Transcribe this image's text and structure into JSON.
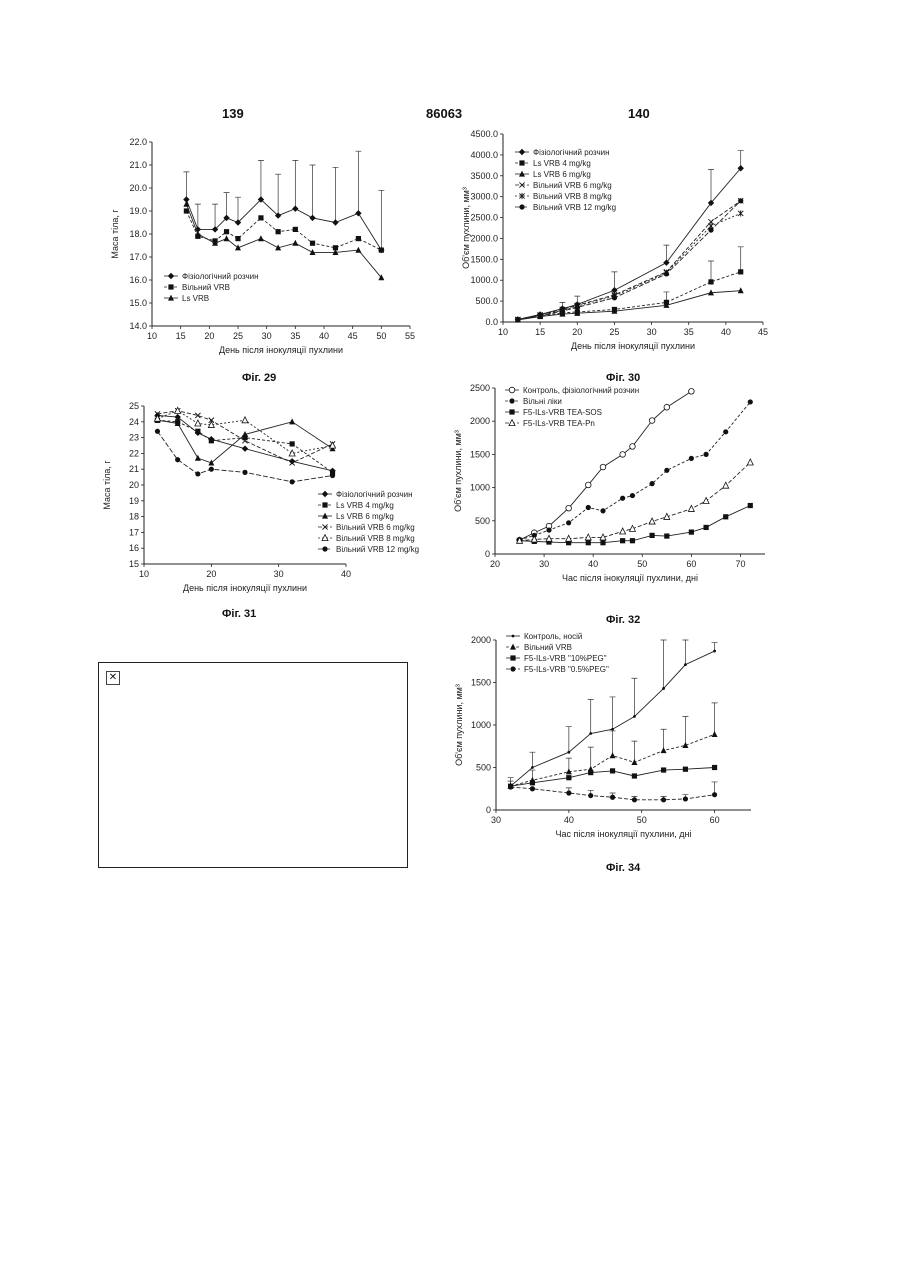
{
  "header": {
    "left": "139",
    "center": "86063",
    "right": "140"
  },
  "captions": [
    "Фіг. 29",
    "Фіг. 30",
    "Фіг. 31",
    "Фіг. 32",
    "Фіг. 34"
  ],
  "broken_image": {
    "icon": "broken-image-icon",
    "glyph": "✕"
  },
  "chart_data": [
    {
      "id": "fig29",
      "type": "line",
      "xlabel": "День після інокуляції пухлини",
      "ylabel": "Маса тіла, г",
      "xlim": [
        10,
        55
      ],
      "ylim": [
        14.0,
        22.0
      ],
      "xticks": [
        10,
        15,
        20,
        25,
        30,
        35,
        40,
        45,
        50,
        55
      ],
      "yticks": [
        14.0,
        15.0,
        16.0,
        17.0,
        18.0,
        19.0,
        20.0,
        21.0,
        22.0
      ],
      "ytick_decimals": 1,
      "legend_position": "bottom-left",
      "series": [
        {
          "name": "Фізіологічний розчин",
          "marker": "diamond",
          "x": [
            16,
            18,
            21,
            23,
            25,
            29,
            32,
            35,
            38,
            42,
            46,
            50
          ],
          "y": [
            19.5,
            18.2,
            18.2,
            18.7,
            18.5,
            19.5,
            18.8,
            19.1,
            18.7,
            18.5,
            18.9,
            17.3
          ],
          "err": [
            1.2,
            1.1,
            1.1,
            1.1,
            1.1,
            1.7,
            1.8,
            2.1,
            2.3,
            2.4,
            2.7,
            2.6
          ]
        },
        {
          "name": "Вільний VRB",
          "marker": "square",
          "x": [
            16,
            18,
            21,
            23,
            25,
            29,
            32,
            35,
            38,
            42,
            46,
            50
          ],
          "y": [
            19.0,
            17.9,
            17.7,
            18.1,
            17.8,
            18.7,
            18.1,
            18.2,
            17.6,
            17.4,
            17.8,
            17.3
          ],
          "err": [
            0,
            0,
            0,
            0,
            0,
            0,
            0,
            0,
            0,
            0,
            0,
            0
          ]
        },
        {
          "name": "Ls VRB",
          "marker": "triangle",
          "x": [
            16,
            18,
            21,
            23,
            25,
            29,
            32,
            35,
            38,
            42,
            46,
            50
          ],
          "y": [
            19.3,
            18.0,
            17.6,
            17.8,
            17.4,
            17.8,
            17.4,
            17.6,
            17.2,
            17.2,
            17.3,
            16.1
          ],
          "err": [
            0,
            0,
            0,
            0,
            0,
            0,
            0,
            0,
            0,
            0,
            0,
            0
          ]
        }
      ]
    },
    {
      "id": "fig30",
      "type": "line",
      "xlabel": "День після інокуляції пухлини",
      "ylabel": "Об'єм пухлини, мм³",
      "xlim": [
        10,
        45
      ],
      "ylim": [
        0,
        4500
      ],
      "xticks": [
        10,
        15,
        20,
        25,
        30,
        35,
        40,
        45
      ],
      "yticks": [
        0,
        500,
        1000,
        1500,
        2000,
        2500,
        3000,
        3500,
        4000,
        4500
      ],
      "ytick_decimals": 1,
      "legend_position": "top-left",
      "series": [
        {
          "name": "Фізіологічний розчин",
          "marker": "diamond",
          "x": [
            12,
            15,
            18,
            20,
            25,
            32,
            38,
            42
          ],
          "y": [
            60,
            180,
            320,
            420,
            760,
            1420,
            2850,
            3680
          ],
          "err": [
            0,
            0,
            150,
            200,
            440,
            420,
            800,
            420
          ]
        },
        {
          "name": "Ls VRB  4 mg/kg",
          "marker": "square",
          "x": [
            12,
            15,
            18,
            20,
            25,
            32,
            38,
            42
          ],
          "y": [
            50,
            140,
            220,
            240,
            300,
            470,
            960,
            1200
          ],
          "err": [
            0,
            0,
            0,
            0,
            0,
            250,
            500,
            600
          ]
        },
        {
          "name": "Ls VRB  6 mg/kg",
          "marker": "triangle",
          "x": [
            12,
            15,
            18,
            20,
            25,
            32,
            38,
            42
          ],
          "y": [
            50,
            130,
            190,
            210,
            260,
            400,
            700,
            750
          ],
          "err": [
            0,
            0,
            0,
            0,
            0,
            0,
            0,
            0
          ]
        },
        {
          "name": "Вільний VRB  6 mg/kg",
          "marker": "x",
          "x": [
            12,
            15,
            18,
            20,
            25,
            32,
            38,
            42
          ],
          "y": [
            60,
            170,
            300,
            400,
            650,
            1200,
            2400,
            2900
          ],
          "err": [
            0,
            0,
            0,
            0,
            0,
            0,
            0,
            0
          ]
        },
        {
          "name": "Вільний VRB  8 mg/kg",
          "marker": "star",
          "x": [
            12,
            15,
            18,
            20,
            25,
            32,
            38,
            42
          ],
          "y": [
            60,
            160,
            280,
            380,
            620,
            1180,
            2300,
            2600
          ],
          "err": [
            0,
            0,
            0,
            0,
            0,
            0,
            0,
            0
          ]
        },
        {
          "name": "Вільний VRB 12 mg/kg",
          "marker": "circle",
          "x": [
            12,
            15,
            18,
            20,
            25,
            32,
            38,
            42
          ],
          "y": [
            60,
            150,
            260,
            350,
            580,
            1150,
            2200,
            2900
          ],
          "err": [
            0,
            0,
            0,
            0,
            0,
            0,
            0,
            0
          ]
        }
      ]
    },
    {
      "id": "fig31",
      "type": "line",
      "xlabel": "День після інокуляції пухлини",
      "ylabel": "Маса тіла, г",
      "xlim": [
        10,
        40
      ],
      "ylim": [
        15,
        25
      ],
      "xticks": [
        10,
        20,
        30,
        40
      ],
      "yticks": [
        15,
        16,
        17,
        18,
        19,
        20,
        21,
        22,
        23,
        24,
        25
      ],
      "ytick_decimals": 0,
      "legend_position": "bottom-right",
      "series": [
        {
          "name": "Фізіологічний розчин",
          "marker": "diamond",
          "x": [
            12,
            15,
            18,
            20,
            25,
            32,
            38
          ],
          "y": [
            24.4,
            24.3,
            23.3,
            22.9,
            22.3,
            21.5,
            20.9
          ],
          "err": [
            0,
            0,
            0,
            0,
            0,
            0,
            0
          ]
        },
        {
          "name": "Ls VRB 4 mg/kg",
          "marker": "square",
          "x": [
            12,
            15,
            18,
            20,
            25,
            32,
            38
          ],
          "y": [
            24.1,
            24.0,
            23.4,
            22.8,
            23.0,
            22.6,
            20.8
          ],
          "err": [
            0,
            0,
            0,
            0,
            0,
            0,
            0
          ]
        },
        {
          "name": "Ls VRB 6 mg/kg",
          "marker": "triangle",
          "x": [
            12,
            15,
            18,
            20,
            25,
            32,
            38
          ],
          "y": [
            24.1,
            23.9,
            21.7,
            21.4,
            23.2,
            24.0,
            22.3
          ],
          "err": [
            0,
            0,
            0,
            0,
            0,
            0,
            0
          ]
        },
        {
          "name": "Вільний VRB 6 mg/kg",
          "marker": "x",
          "x": [
            12,
            15,
            18,
            20,
            25,
            32,
            38
          ],
          "y": [
            24.5,
            24.7,
            24.4,
            24.1,
            22.8,
            21.4,
            22.6
          ],
          "err": [
            0,
            0,
            0,
            0,
            0,
            0,
            0
          ]
        },
        {
          "name": "Вільний VRB 8 mg/kg",
          "marker": "triangle-open",
          "x": [
            12,
            15,
            18,
            20,
            25,
            32,
            38
          ],
          "y": [
            24.2,
            24.7,
            23.9,
            23.8,
            24.1,
            22.0,
            22.5
          ],
          "err": [
            0,
            0,
            0,
            0,
            0,
            0,
            0
          ]
        },
        {
          "name": "Вільний VRB 12 mg/kg",
          "marker": "circle",
          "x": [
            12,
            15,
            18,
            20,
            25,
            32,
            38
          ],
          "y": [
            23.4,
            21.6,
            20.7,
            21.0,
            20.8,
            20.2,
            20.6
          ],
          "err": [
            0,
            0,
            0,
            0,
            0,
            0,
            0
          ]
        }
      ]
    },
    {
      "id": "fig32",
      "type": "line",
      "xlabel": "Час після інокуляції пухлини, дні",
      "ylabel": "Об'єм пухлини, мм³",
      "xlim": [
        20,
        75
      ],
      "ylim": [
        0,
        2500
      ],
      "xticks": [
        20,
        30,
        40,
        50,
        60,
        70
      ],
      "yticks": [
        0,
        500,
        1000,
        1500,
        2000,
        2500
      ],
      "ytick_decimals": 0,
      "legend_position": "top-left",
      "series": [
        {
          "name": "Контроль, фізіологічний розчин",
          "marker": "circle-open",
          "x": [
            25,
            28,
            31,
            35,
            39,
            42,
            46,
            48,
            52,
            55,
            60
          ],
          "y": [
            210,
            320,
            420,
            690,
            1040,
            1310,
            1500,
            1620,
            2010,
            2210,
            2450
          ],
          "err": [
            0,
            0,
            0,
            0,
            0,
            0,
            0,
            0,
            0,
            0,
            0
          ]
        },
        {
          "name": "Вільні ліки",
          "marker": "circle",
          "x": [
            25,
            28,
            31,
            35,
            39,
            42,
            46,
            48,
            52,
            55,
            60,
            63,
            67,
            72
          ],
          "y": [
            210,
            280,
            360,
            470,
            700,
            650,
            840,
            880,
            1060,
            1260,
            1440,
            1500,
            1840,
            2290
          ],
          "err": [
            0,
            0,
            0,
            0,
            0,
            0,
            0,
            0,
            0,
            0,
            0,
            0,
            0,
            0
          ]
        },
        {
          "name": "F5-ILs-VRB TEA-SOS",
          "marker": "square",
          "x": [
            25,
            28,
            31,
            35,
            39,
            42,
            46,
            48,
            52,
            55,
            60,
            63,
            67,
            72
          ],
          "y": [
            200,
            190,
            180,
            170,
            170,
            170,
            200,
            200,
            280,
            270,
            330,
            400,
            560,
            730
          ],
          "err": [
            0,
            0,
            0,
            0,
            0,
            0,
            0,
            0,
            0,
            0,
            0,
            0,
            0,
            0
          ]
        },
        {
          "name": "F5-ILs-VRB TEA-Pn",
          "marker": "triangle-open",
          "x": [
            25,
            28,
            31,
            35,
            39,
            42,
            46,
            48,
            52,
            55,
            60,
            63,
            67,
            72
          ],
          "y": [
            200,
            220,
            230,
            230,
            250,
            250,
            340,
            380,
            490,
            560,
            680,
            800,
            1030,
            1380
          ],
          "err": [
            0,
            0,
            0,
            0,
            0,
            0,
            0,
            0,
            0,
            0,
            0,
            0,
            0,
            0
          ]
        }
      ]
    },
    {
      "id": "fig34",
      "type": "line",
      "xlabel": "Час після інокуляції пухлини, дні",
      "ylabel": "Об'єм пухлини, мм³",
      "xlim": [
        30,
        65
      ],
      "ylim": [
        0,
        2000
      ],
      "xticks": [
        30,
        40,
        50,
        60
      ],
      "yticks": [
        0,
        500,
        1000,
        1500,
        2000
      ],
      "ytick_decimals": 0,
      "legend_position": "top-left",
      "series": [
        {
          "name": "Контроль, носій",
          "marker": "small-circle",
          "x": [
            32,
            35,
            40,
            43,
            46,
            49,
            53,
            56,
            60
          ],
          "y": [
            280,
            500,
            680,
            900,
            950,
            1100,
            1430,
            1710,
            1870
          ],
          "err": [
            100,
            180,
            300,
            400,
            380,
            450,
            580,
            350,
            100
          ]
        },
        {
          "name": "Вільний VRB",
          "marker": "triangle",
          "x": [
            32,
            35,
            40,
            43,
            46,
            49,
            53,
            56,
            60
          ],
          "y": [
            280,
            350,
            450,
            480,
            640,
            560,
            700,
            760,
            890
          ],
          "err": [
            60,
            120,
            160,
            260,
            290,
            250,
            250,
            340,
            370
          ]
        },
        {
          "name": "F5-ILs-VRB \"10%PEG\"",
          "marker": "square",
          "x": [
            32,
            35,
            40,
            43,
            46,
            49,
            53,
            56,
            60
          ],
          "y": [
            280,
            320,
            380,
            440,
            460,
            400,
            470,
            480,
            500
          ],
          "err": [
            0,
            0,
            0,
            0,
            0,
            0,
            0,
            0,
            0
          ]
        },
        {
          "name": "F5-ILs-VRB \"0.5%PEG\"",
          "marker": "circle",
          "x": [
            32,
            35,
            40,
            43,
            46,
            49,
            53,
            56,
            60
          ],
          "y": [
            270,
            250,
            200,
            170,
            150,
            120,
            120,
            130,
            180
          ],
          "err": [
            0,
            0,
            60,
            60,
            50,
            40,
            40,
            50,
            150
          ]
        }
      ]
    }
  ]
}
